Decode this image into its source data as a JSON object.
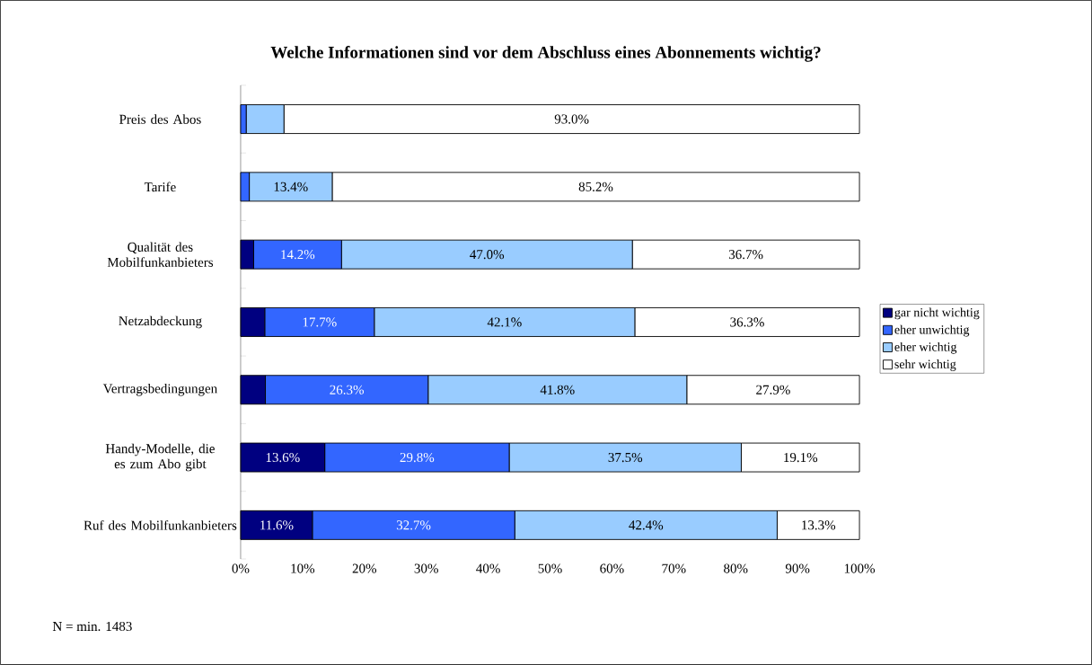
{
  "chart_data": {
    "type": "bar",
    "orientation": "horizontal",
    "stacked": true,
    "title": "Welche Informationen sind vor dem Abschluss eines Abonnements wichtig?",
    "categories": [
      "Preis des Abos",
      "Tarife",
      "Qualität des Mobilfunkanbieters",
      "Netzabdeckung",
      "Vertragsbedingungen",
      "Handy-Modelle, die es zum Abo gibt",
      "Ruf des Mobilfunkanbieters"
    ],
    "series": [
      {
        "name": "gar nicht wichtig",
        "color": "#000080",
        "values": [
          0,
          0,
          2.1,
          3.9,
          4.0,
          13.6,
          11.6
        ],
        "value_labels": [
          null,
          null,
          null,
          null,
          null,
          "13.6%",
          "11.6%"
        ]
      },
      {
        "name": "eher unwichtig",
        "color": "#3366ff",
        "values": [
          0.9,
          1.4,
          14.2,
          17.7,
          26.3,
          29.8,
          32.7
        ],
        "value_labels": [
          null,
          null,
          "14.2%",
          "17.7%",
          "26.3%",
          "29.8%",
          "32.7%"
        ]
      },
      {
        "name": "eher wichtig",
        "color": "#99ccff",
        "values": [
          6.1,
          13.4,
          47.0,
          42.1,
          41.8,
          37.5,
          42.4
        ],
        "value_labels": [
          null,
          "13.4%",
          "47.0%",
          "42.1%",
          "41.8%",
          "37.5%",
          "42.4%"
        ]
      },
      {
        "name": "sehr wichtig",
        "color": "#ffffff",
        "values": [
          93.0,
          85.2,
          36.7,
          36.3,
          27.9,
          19.1,
          13.3
        ],
        "value_labels": [
          "93.0%",
          "85.2%",
          "36.7%",
          "36.3%",
          "27.9%",
          "19.1%",
          "13.3%"
        ]
      }
    ],
    "xlim": [
      0,
      100
    ],
    "xticks": [
      {
        "value": 0,
        "label": "0%"
      },
      {
        "value": 10,
        "label": "10%"
      },
      {
        "value": 20,
        "label": "20%"
      },
      {
        "value": 30,
        "label": "30%"
      },
      {
        "value": 40,
        "label": "40%"
      },
      {
        "value": 50,
        "label": "50%"
      },
      {
        "value": 60,
        "label": "60%"
      },
      {
        "value": 70,
        "label": "70%"
      },
      {
        "value": 80,
        "label": "80%"
      },
      {
        "value": 90,
        "label": "90%"
      },
      {
        "value": 100,
        "label": "100%"
      }
    ],
    "legend": "right",
    "annotations": [
      "N = min. 1483"
    ]
  }
}
